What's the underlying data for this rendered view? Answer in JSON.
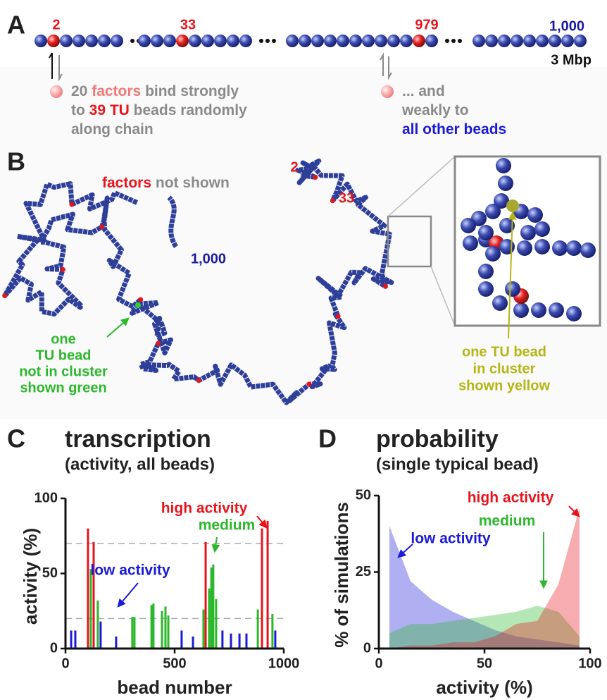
{
  "panel_a": {
    "letter": "A",
    "bead_labels": [
      "2",
      "33",
      "979",
      "1,000"
    ],
    "length": "3 Mbp",
    "left_text": [
      [
        "20 ",
        "factors",
        " bind strongly"
      ],
      [
        "to ",
        "39 TU",
        " beads randomly"
      ],
      [
        "along chain"
      ]
    ],
    "right_text": [
      [
        "... and"
      ],
      [
        "weakly to"
      ],
      [
        "all other beads"
      ]
    ]
  },
  "panel_b": {
    "letter": "B",
    "factors_note": [
      "factors",
      " not shown"
    ],
    "bead_labels": [
      "2",
      "33",
      "1,000"
    ],
    "green_note": [
      "one",
      "TU bead",
      "not in cluster",
      "shown green"
    ],
    "yellow_note": [
      "one TU bead",
      "in cluster",
      "shown yellow"
    ]
  },
  "chart_data": [
    {
      "type": "bar",
      "letter": "C",
      "title": "transcription",
      "subtitle": "(activity, all beads)",
      "x_label": "bead number",
      "y_label": "activity (%)",
      "xlim": [
        0,
        1000
      ],
      "xticks": [
        0,
        500,
        1000
      ],
      "ylim": [
        0,
        100
      ],
      "yticks": [
        0,
        50,
        100
      ],
      "reference_lines": [
        20,
        70
      ],
      "series": [
        {
          "name": "high activity",
          "color": "#e8141c",
          "x": [
            103,
            129,
            642,
            900,
            926
          ],
          "values": [
            80,
            71,
            71,
            80,
            85
          ]
        },
        {
          "name": "medium",
          "color": "#2cb82c",
          "x": [
            116,
            148,
            306,
            316,
            394,
            403,
            442,
            458,
            471,
            632,
            658,
            668,
            677,
            690,
            881,
            948
          ],
          "values": [
            53,
            32,
            21,
            21,
            29,
            30,
            25,
            28,
            22,
            26,
            40,
            54,
            56,
            33,
            26,
            23
          ]
        },
        {
          "name": "low activity",
          "color": "#1a1ad8",
          "x": [
            26,
            45,
            161,
            232,
            532,
            584,
            719,
            758,
            797,
            829,
            961
          ],
          "values": [
            12,
            12,
            18,
            8,
            12,
            8,
            12,
            10,
            10,
            10,
            12
          ]
        }
      ]
    },
    {
      "type": "area",
      "letter": "D",
      "title": "probability",
      "subtitle": "(single typical bead)",
      "x_label": "activity (%)",
      "y_label": "% of simulations",
      "xlim": [
        0,
        100
      ],
      "xticks": [
        0,
        50,
        100
      ],
      "ylim": [
        0,
        50
      ],
      "yticks": [
        0,
        25,
        50
      ],
      "x": [
        5,
        15,
        25,
        35,
        45,
        55,
        65,
        75,
        85,
        95
      ],
      "series": [
        {
          "name": "low activity",
          "color": "#1a1ad8",
          "values": [
            40,
            22,
            16,
            12,
            9,
            6,
            4,
            3,
            2,
            1
          ]
        },
        {
          "name": "medium",
          "color": "#2cb82c",
          "values": [
            5,
            8,
            8,
            9,
            10,
            11,
            12,
            14,
            12,
            4
          ]
        },
        {
          "name": "high activity",
          "color": "#e8141c",
          "values": [
            0,
            1,
            1,
            2,
            2,
            4,
            8,
            9,
            21,
            46
          ]
        }
      ]
    }
  ]
}
